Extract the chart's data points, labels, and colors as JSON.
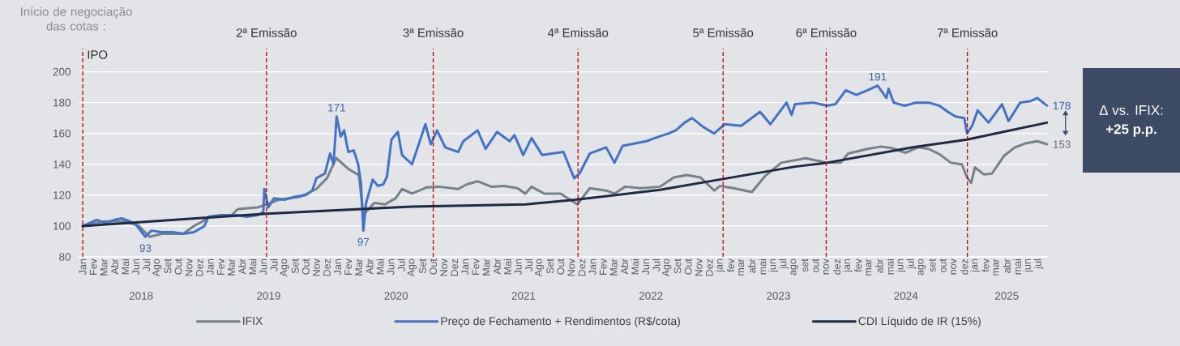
{
  "chart_data": {
    "type": "line",
    "xlim": [
      "2017-12-20",
      "2025-07-28"
    ],
    "ylim": [
      80,
      215
    ],
    "yticks": [
      80,
      100,
      120,
      140,
      160,
      180,
      200
    ],
    "xticks": [
      {
        "value": "2018-01",
        "label": "Jan"
      },
      {
        "value": "2018-02",
        "label": "Fev"
      },
      {
        "value": "2018-03",
        "label": "Mar"
      },
      {
        "value": "2018-04",
        "label": "Abr"
      },
      {
        "value": "2018-05",
        "label": "Mai"
      },
      {
        "value": "2018-06",
        "label": "Jun"
      },
      {
        "value": "2018-07",
        "label": "Jul"
      },
      {
        "value": "2018-08",
        "label": "Ago"
      },
      {
        "value": "2018-09",
        "label": "Set"
      },
      {
        "value": "2018-10",
        "label": "Out"
      },
      {
        "value": "2018-11",
        "label": "Nov"
      },
      {
        "value": "2018-12",
        "label": "Dez"
      },
      {
        "value": "2019-01",
        "label": "Jan"
      },
      {
        "value": "2019-02",
        "label": "Fev"
      },
      {
        "value": "2019-03",
        "label": "Mar"
      },
      {
        "value": "2019-04",
        "label": "Abr"
      },
      {
        "value": "2019-05",
        "label": "Mai"
      },
      {
        "value": "2019-06",
        "label": "Jun"
      },
      {
        "value": "2019-07",
        "label": "Jul"
      },
      {
        "value": "2019-08",
        "label": "Ago"
      },
      {
        "value": "2019-09",
        "label": "Set"
      },
      {
        "value": "2019-10",
        "label": "Out"
      },
      {
        "value": "2019-11",
        "label": "Nov"
      },
      {
        "value": "2019-12",
        "label": "Dez"
      },
      {
        "value": "2020-01",
        "label": "Jan"
      },
      {
        "value": "2020-02",
        "label": "Fev"
      },
      {
        "value": "2020-03",
        "label": "Mar"
      },
      {
        "value": "2020-04",
        "label": "Abr"
      },
      {
        "value": "2020-05",
        "label": "Mai"
      },
      {
        "value": "2020-06",
        "label": "Jun"
      },
      {
        "value": "2020-07",
        "label": "Jul"
      },
      {
        "value": "2020-08",
        "label": "Ago"
      },
      {
        "value": "2020-09",
        "label": "Set"
      },
      {
        "value": "2020-10",
        "label": "Out"
      },
      {
        "value": "2020-11",
        "label": "Nov"
      },
      {
        "value": "2020-12",
        "label": "Dez"
      },
      {
        "value": "2021-01",
        "label": "Jan"
      },
      {
        "value": "2021-02",
        "label": "Fev"
      },
      {
        "value": "2021-03",
        "label": "Mar"
      },
      {
        "value": "2021-04",
        "label": "Abr"
      },
      {
        "value": "2021-05",
        "label": "Mai"
      },
      {
        "value": "2021-06",
        "label": "Jun"
      },
      {
        "value": "2021-07",
        "label": "Jul"
      },
      {
        "value": "2021-08",
        "label": "Ago"
      },
      {
        "value": "2021-09",
        "label": "Set"
      },
      {
        "value": "2021-10",
        "label": "Out"
      },
      {
        "value": "2021-11",
        "label": "Nov"
      },
      {
        "value": "2021-12",
        "label": "Dez"
      },
      {
        "value": "2022-01",
        "label": "Jan"
      },
      {
        "value": "2022-02",
        "label": "Fev"
      },
      {
        "value": "2022-03",
        "label": "Mar"
      },
      {
        "value": "2022-04",
        "label": "Abr"
      },
      {
        "value": "2022-05",
        "label": "Mai"
      },
      {
        "value": "2022-06",
        "label": "Jun"
      },
      {
        "value": "2022-07",
        "label": "Jul"
      },
      {
        "value": "2022-08",
        "label": "Ago"
      },
      {
        "value": "2022-09",
        "label": "Set"
      },
      {
        "value": "2022-10",
        "label": "Out"
      },
      {
        "value": "2022-11",
        "label": "Nov"
      },
      {
        "value": "2022-12",
        "label": "Dez"
      },
      {
        "value": "2023-01",
        "label": "jan"
      },
      {
        "value": "2023-02",
        "label": "fev"
      },
      {
        "value": "2023-03",
        "label": "mar"
      },
      {
        "value": "2023-04",
        "label": "abr"
      },
      {
        "value": "2023-05",
        "label": "mai"
      },
      {
        "value": "2023-06",
        "label": "jun"
      },
      {
        "value": "2023-07",
        "label": "jul"
      },
      {
        "value": "2023-08",
        "label": "ago"
      },
      {
        "value": "2023-09",
        "label": "set"
      },
      {
        "value": "2023-10",
        "label": "out"
      },
      {
        "value": "2023-11",
        "label": "nov"
      },
      {
        "value": "2023-12",
        "label": "dez"
      },
      {
        "value": "2024-01",
        "label": "jan"
      },
      {
        "value": "2024-02",
        "label": "fev"
      },
      {
        "value": "2024-03",
        "label": "mar"
      },
      {
        "value": "2024-04",
        "label": "abr"
      },
      {
        "value": "2024-05",
        "label": "mai"
      },
      {
        "value": "2024-06",
        "label": "jun"
      },
      {
        "value": "2024-07",
        "label": "jul"
      },
      {
        "value": "2024-08",
        "label": "ago"
      },
      {
        "value": "2024-09",
        "label": "set"
      },
      {
        "value": "2024-10",
        "label": "out"
      },
      {
        "value": "2024-11",
        "label": "nov"
      },
      {
        "value": "2024-12",
        "label": "dez"
      },
      {
        "value": "2025-01",
        "label": "jan"
      },
      {
        "value": "2025-02",
        "label": "fev"
      },
      {
        "value": "2025-03",
        "label": "mar"
      },
      {
        "value": "2025-04",
        "label": "abr"
      },
      {
        "value": "2025-05",
        "label": "mai"
      },
      {
        "value": "2025-06",
        "label": "jun"
      },
      {
        "value": "2025-07",
        "label": "jul"
      }
    ],
    "grid": "y",
    "legend": "bottom",
    "series": [
      {
        "name": "IFIX",
        "color": "#76828a",
        "x": [
          "2018-01-01",
          "2018-03-01",
          "2018-05-01",
          "2018-06-10",
          "2018-07-10",
          "2018-08-15",
          "2018-10-15",
          "2018-11-15",
          "2018-12-10",
          "2018-12-27",
          "2019-03-01",
          "2019-03-20",
          "2019-05-15",
          "2019-06-10",
          "2019-07-15",
          "2019-09-15",
          "2019-11-01",
          "2019-12-01",
          "2019-12-28",
          "2020-02-01",
          "2020-03-01",
          "2020-03-14",
          "2020-03-25",
          "2020-04-15",
          "2020-05-15",
          "2020-06-15",
          "2020-07-03",
          "2020-08-01",
          "2020-09-12",
          "2020-10-18",
          "2020-12-12",
          "2021-01-06",
          "2021-02-06",
          "2021-03-15",
          "2021-04-21",
          "2021-05-30",
          "2021-06-21",
          "2021-07-09",
          "2021-08-15",
          "2021-10-01",
          "2021-11-18",
          "2021-12-24",
          "2022-02-09",
          "2022-03-03",
          "2022-04-03",
          "2022-05-18",
          "2022-07-12",
          "2022-08-21",
          "2022-09-27",
          "2022-11-06",
          "2022-12-15",
          "2023-01-01",
          "2023-02-09",
          "2023-04-01",
          "2023-05-09",
          "2023-06-24",
          "2023-09-03",
          "2023-11-03",
          "2023-12-12",
          "2024-01-03",
          "2024-02-27",
          "2024-04-06",
          "2024-05-06",
          "2024-06-15",
          "2024-07-21",
          "2024-08-21",
          "2024-09-21",
          "2024-10-24",
          "2024-11-24",
          "2024-12-09",
          "2024-12-21",
          "2025-01-01",
          "2025-01-27",
          "2025-02-18",
          "2025-03-24",
          "2025-04-24",
          "2025-05-24",
          "2025-06-27",
          "2025-07-25"
        ],
        "values": [
          100,
          103,
          103,
          100,
          93,
          95,
          95,
          100,
          103,
          106,
          107,
          111,
          112,
          114,
          117,
          119,
          124,
          131,
          144,
          137,
          133,
          107,
          110,
          115,
          114,
          118,
          124,
          121,
          125,
          125.5,
          124,
          127,
          129,
          125.5,
          126,
          124.5,
          121,
          125.5,
          121,
          121,
          114,
          124.5,
          123,
          121,
          125.5,
          124.5,
          125.5,
          131.5,
          133,
          131.5,
          123,
          126,
          124.5,
          122,
          132.5,
          141,
          144,
          141,
          141,
          147,
          150,
          151.5,
          150.5,
          147.5,
          151,
          150,
          146.5,
          141,
          140,
          131.5,
          128,
          138,
          133.5,
          134,
          145.5,
          151,
          153.5,
          155,
          153
        ]
      },
      {
        "name": "Preço de Fechamento + Rendimentos (R$/cota)",
        "color": "#4472c4",
        "x": [
          "2018-01-01",
          "2018-02-10",
          "2018-03-05",
          "2018-04-01",
          "2018-04-20",
          "2018-05-15",
          "2018-06-01",
          "2018-06-28",
          "2018-07-15",
          "2018-08-15",
          "2018-09-15",
          "2018-10-15",
          "2018-11-15",
          "2018-12-15",
          "2018-12-27",
          "2019-02-01",
          "2019-03-15",
          "2019-04-15",
          "2019-05-15",
          "2019-06-01",
          "2019-06-04",
          "2019-06-15",
          "2019-07-01",
          "2019-08-01",
          "2019-09-01",
          "2019-10-01",
          "2019-10-20",
          "2019-11-01",
          "2019-11-25",
          "2019-12-10",
          "2019-12-20",
          "2019-12-29",
          "2020-01-10",
          "2020-01-20",
          "2020-02-01",
          "2020-02-16",
          "2020-02-28",
          "2020-03-07",
          "2020-03-14",
          "2020-03-22",
          "2020-04-10",
          "2020-04-25",
          "2020-05-10",
          "2020-05-21",
          "2020-06-03",
          "2020-06-21",
          "2020-07-03",
          "2020-08-01",
          "2020-09-09",
          "2020-09-24",
          "2020-10-12",
          "2020-11-05",
          "2020-12-12",
          "2020-12-27",
          "2021-02-06",
          "2021-02-27",
          "2021-04-01",
          "2021-05-07",
          "2021-05-21",
          "2021-06-15",
          "2021-07-09",
          "2021-08-09",
          "2021-10-09",
          "2021-11-09",
          "2021-11-24",
          "2021-12-24",
          "2022-02-09",
          "2022-03-03",
          "2022-03-27",
          "2022-06-03",
          "2022-06-27",
          "2022-08-06",
          "2022-08-27",
          "2022-09-21",
          "2022-10-12",
          "2022-11-15",
          "2022-12-15",
          "2023-01-15",
          "2023-03-01",
          "2023-04-24",
          "2023-05-24",
          "2023-07-09",
          "2023-07-24",
          "2023-08-03",
          "2023-09-24",
          "2023-11-03",
          "2023-11-27",
          "2023-12-27",
          "2024-01-27",
          "2024-02-27",
          "2024-03-27",
          "2024-04-21",
          "2024-04-27",
          "2024-05-12",
          "2024-06-12",
          "2024-07-15",
          "2024-08-21",
          "2024-09-21",
          "2024-10-15",
          "2024-11-06",
          "2024-12-01",
          "2024-12-09",
          "2024-12-24",
          "2025-01-09",
          "2025-02-09",
          "2025-03-18",
          "2025-04-06",
          "2025-05-09",
          "2025-06-09",
          "2025-06-27",
          "2025-07-25"
        ],
        "values": [
          100,
          104,
          102,
          104,
          105,
          103,
          101,
          93,
          97,
          96,
          96,
          95,
          96,
          100,
          106,
          107,
          107,
          106,
          107,
          109,
          124,
          112,
          118,
          117,
          119,
          120,
          123,
          131,
          134,
          147,
          140,
          171,
          158,
          162,
          148,
          149,
          140,
          128,
          97,
          115,
          130,
          126,
          127,
          132,
          156,
          161,
          146,
          140,
          166,
          153,
          162,
          151,
          148,
          155,
          162,
          150,
          161,
          155,
          159,
          146,
          157,
          146,
          148,
          131,
          134,
          147,
          151,
          141,
          152,
          155,
          157,
          160,
          162,
          167,
          170,
          164,
          160,
          166,
          165,
          174,
          166,
          180,
          172,
          179,
          180,
          178,
          179,
          188,
          185,
          188,
          191,
          183,
          189,
          180,
          178,
          180,
          180,
          178,
          174,
          171,
          170,
          160,
          165,
          175,
          167,
          179,
          168,
          180,
          181,
          183,
          178
        ]
      },
      {
        "name": "CDI Líquido de IR (15%)",
        "color": "#1f2a44",
        "x": [
          "2018-01-01",
          "2019-06-10",
          "2020-07-18",
          "2021-06-21",
          "2021-11-12",
          "2022-07-12",
          "2023-01-10",
          "2023-08-03",
          "2023-11-03",
          "2024-07-06",
          "2024-12-09",
          "2025-07-25"
        ],
        "values": [
          100,
          108,
          112.5,
          114,
          117,
          123.5,
          130.5,
          138.5,
          141,
          151,
          156,
          167
        ]
      }
    ],
    "ref_lines": [
      {
        "axis": "x",
        "value": "2018-01-01",
        "label": "IPO",
        "color": "#c00000",
        "line_style": "dashed"
      },
      {
        "axis": "x",
        "value": "2019-06-10",
        "label": "2ª Emissão",
        "color": "#c00000",
        "line_style": "dashed"
      },
      {
        "axis": "x",
        "value": "2020-10-01",
        "label": "3ª Emissão",
        "color": "#c00000",
        "line_style": "dashed"
      },
      {
        "axis": "x",
        "value": "2021-11-20",
        "label": "4ª Emissão",
        "color": "#c00000",
        "line_style": "dashed"
      },
      {
        "axis": "x",
        "value": "2023-01-10",
        "label": "5ª Emissão",
        "color": "#c00000",
        "line_style": "dashed"
      },
      {
        "axis": "x",
        "value": "2023-11-01",
        "label": "6ª Emissão",
        "color": "#c00000",
        "line_style": "dashed"
      },
      {
        "axis": "x",
        "value": "2024-12-10",
        "label": "7ª Emissão",
        "color": "#c00000",
        "line_style": "dashed"
      }
    ],
    "annotations": [
      "Início de negociação das cotas :",
      "Δ vs. IFIX:",
      "+25 p.p.",
      "2018",
      "2019",
      "2020",
      "2021",
      "2022",
      "2023",
      "2024",
      "2025",
      {
        "text": "93",
        "x": "2018-06-28",
        "y": 93
      },
      {
        "text": "171",
        "x": "2019-12-29",
        "y": 171
      },
      {
        "text": "97",
        "x": "2020-03-14",
        "y": 97
      },
      {
        "text": "191",
        "x": "2024-03-27",
        "y": 191
      },
      {
        "text": "178",
        "x": "2025-07-25",
        "y": 178
      },
      {
        "text": "153",
        "x": "2025-07-25",
        "y": 153
      }
    ]
  }
}
